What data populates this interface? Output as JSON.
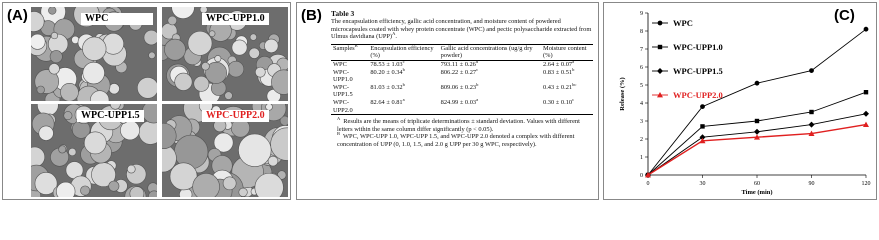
{
  "panel_a": {
    "label": "(A)",
    "images": [
      "WPC",
      "WPC-UPP1.0",
      "WPC-UPP1.5",
      "WPC-UPP2.0"
    ]
  },
  "panel_b": {
    "label": "(B)",
    "table_title": "Table 3",
    "caption": "The encapsulation efficiency, gallic acid concentration, and moisture content of powdered microcapsules coated with whey protein concentrate (WPC) and pectic polysaccharide extracted from Ulmus davidiana (UPP)",
    "caption_sup": "A",
    "headers": [
      "Samples",
      "Encapsulation efficiency (%)",
      "Gallic acid concentrations (ug/g dry powder)",
      "Moisture content (%)"
    ],
    "samples_sup": "B",
    "rows": [
      [
        {
          "text": "WPC"
        },
        {
          "text": "78.53 ± 1.03",
          "sup": "c"
        },
        {
          "text": "793.11 ± 0.26",
          "sup": "d"
        },
        {
          "text": "2.64 ± 0.07",
          "sup": "a"
        }
      ],
      [
        {
          "text": "WPC-UPP1.0"
        },
        {
          "text": "80.20 ± 0.34",
          "sup": "b"
        },
        {
          "text": "806.22 ± 0.27",
          "sup": "c"
        },
        {
          "text": "0.83 ± 0.51",
          "sup": "b"
        }
      ],
      [
        {
          "text": "WPC-UPP1.5"
        },
        {
          "text": "81.03 ± 0.32",
          "sup": "b"
        },
        {
          "text": "809.06 ± 0.23",
          "sup": "b"
        },
        {
          "text": "0.43 ± 0.21",
          "sup": "bc"
        }
      ],
      [
        {
          "text": "WPC-UPP2.0"
        },
        {
          "text": "82.64 ± 0.81",
          "sup": "a"
        },
        {
          "text": "824.99 ± 0.03",
          "sup": "a"
        },
        {
          "text": "0.30 ± 0.10",
          "sup": "c"
        }
      ]
    ],
    "footnotes": [
      {
        "marker": "A",
        "text": "Results are the means of triplicate determinations ± standard deviation. Values with different letters within the same column differ significantly (p < 0.05)."
      },
      {
        "marker": "B",
        "text": "WPC, WPC-UPP 1.0, WPC-UPP 1.5, and WPC-UPP 2.0 denoted a complex with different concentration of UPP (0, 1.0, 1.5, and 2.0 g UPP per 30 g WPC, respectively)."
      }
    ]
  },
  "chart_data": {
    "type": "line",
    "panel_label": "(C)",
    "x_label": "Time (min)",
    "y_label": "Release (%)",
    "x": [
      0,
      30,
      60,
      90,
      120
    ],
    "xlim": [
      0,
      120
    ],
    "xticks": [
      0,
      30,
      60,
      90,
      120
    ],
    "ylim": [
      0,
      9
    ],
    "yticks": [
      0,
      1,
      2,
      3,
      4,
      5,
      6,
      7,
      8,
      9
    ],
    "series": [
      {
        "name": "WPC",
        "color": "#000000",
        "marker": "circle",
        "values": [
          0,
          3.8,
          5.1,
          5.8,
          8.1
        ]
      },
      {
        "name": "WPC-UPP1.0",
        "color": "#000000",
        "marker": "square",
        "values": [
          0,
          2.7,
          3.0,
          3.5,
          4.6
        ]
      },
      {
        "name": "WPC-UPP1.5",
        "color": "#000000",
        "marker": "diamond",
        "values": [
          0,
          2.1,
          2.4,
          2.8,
          3.4
        ]
      },
      {
        "name": "WPC-UPP2.0",
        "color": "#e02020",
        "marker": "triangle",
        "values": [
          0,
          1.9,
          2.1,
          2.3,
          2.8
        ]
      }
    ]
  }
}
